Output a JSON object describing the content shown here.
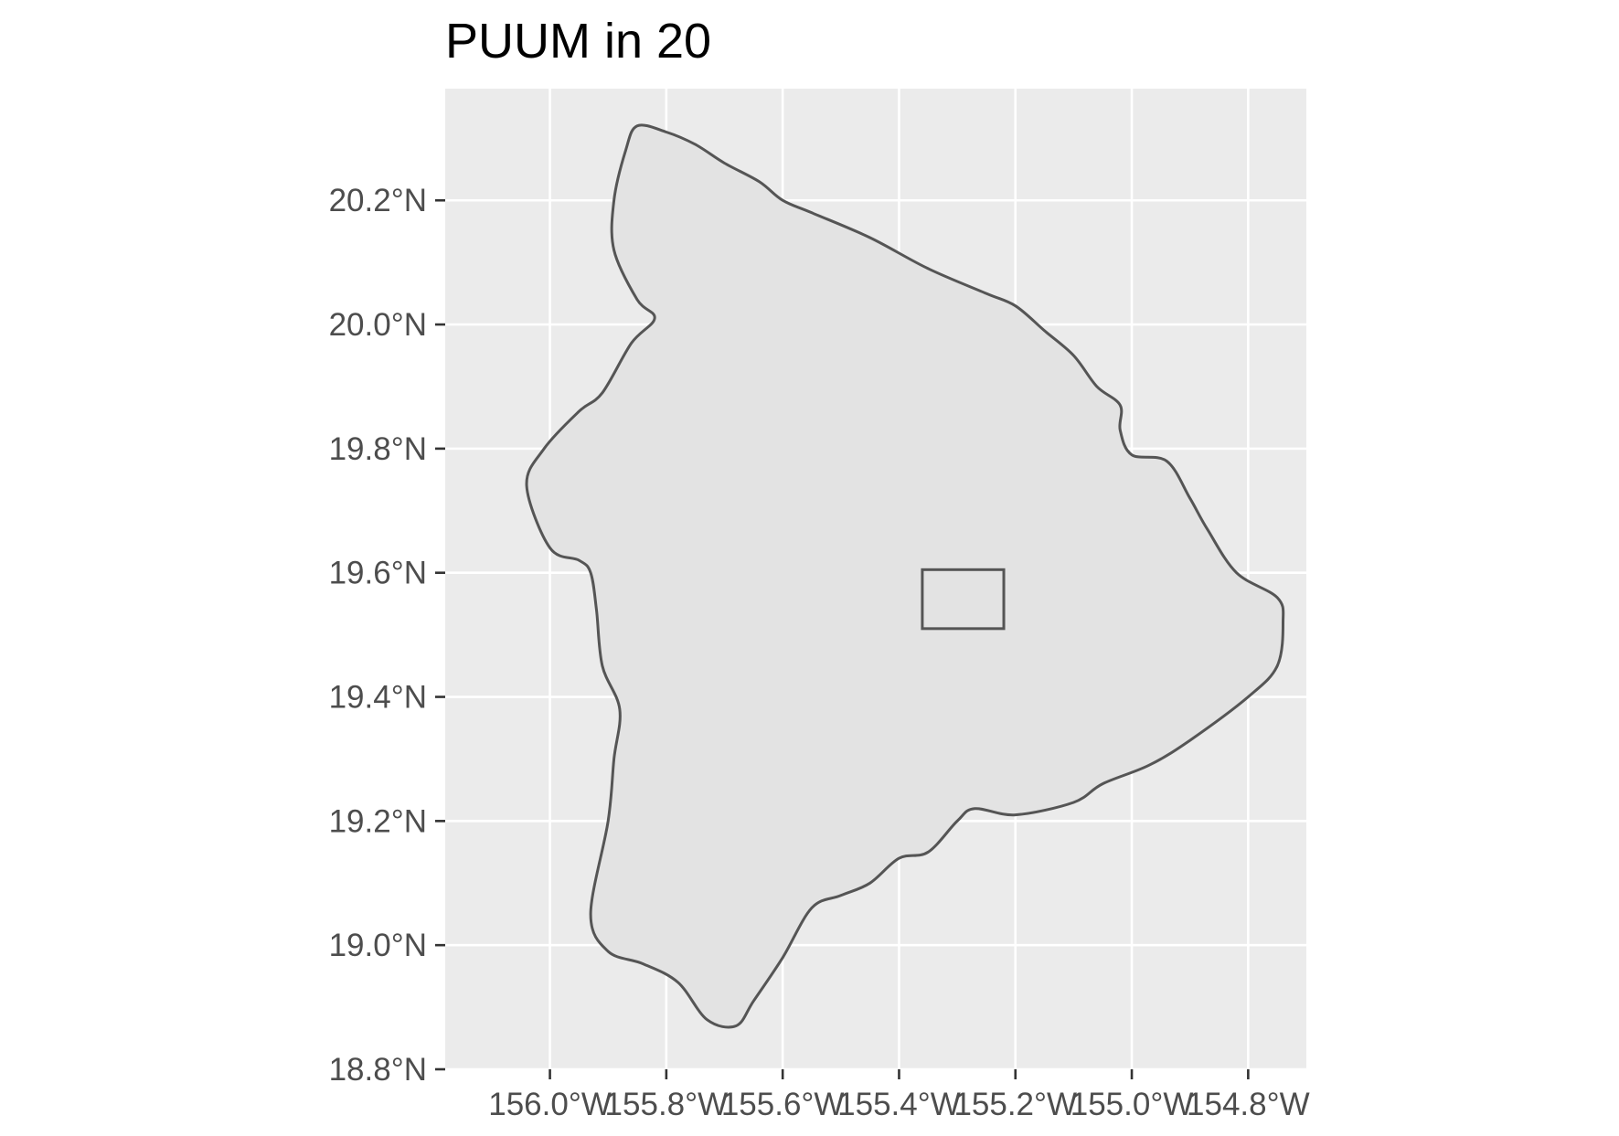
{
  "title": "PUUM in 20",
  "map": {
    "projection": "equirectangular",
    "panel_background": "#ebebeb",
    "grid_color": "#ffffff",
    "land_fill": "#e3e3e3",
    "outline_color": "#555555",
    "tick_color": "#333333",
    "lon_range": [
      -156.18,
      -154.7
    ],
    "lat_range": [
      18.8,
      20.38
    ],
    "lon_ticks": [
      {
        "value": -156.0,
        "label": "156.0°W"
      },
      {
        "value": -155.8,
        "label": "155.8°W"
      },
      {
        "value": -155.6,
        "label": "155.6°W"
      },
      {
        "value": -155.4,
        "label": "155.4°W"
      },
      {
        "value": -155.2,
        "label": "155.2°W"
      },
      {
        "value": -155.0,
        "label": "155.0°W"
      },
      {
        "value": -154.8,
        "label": "154.8°W"
      }
    ],
    "lat_ticks": [
      {
        "value": 18.8,
        "label": "18.8°N"
      },
      {
        "value": 19.0,
        "label": "19.0°N"
      },
      {
        "value": 19.2,
        "label": "19.2°N"
      },
      {
        "value": 19.4,
        "label": "19.4°N"
      },
      {
        "value": 19.6,
        "label": "19.6°N"
      },
      {
        "value": 19.8,
        "label": "19.8°N"
      },
      {
        "value": 20.0,
        "label": "20.0°N"
      },
      {
        "value": 20.2,
        "label": "20.2°N"
      }
    ],
    "island_outline": [
      [
        -155.85,
        20.32
      ],
      [
        -155.8,
        20.31
      ],
      [
        -155.75,
        20.29
      ],
      [
        -155.7,
        20.26
      ],
      [
        -155.64,
        20.23
      ],
      [
        -155.6,
        20.2
      ],
      [
        -155.55,
        20.18
      ],
      [
        -155.45,
        20.14
      ],
      [
        -155.35,
        20.09
      ],
      [
        -155.25,
        20.05
      ],
      [
        -155.2,
        20.03
      ],
      [
        -155.15,
        19.99
      ],
      [
        -155.1,
        19.95
      ],
      [
        -155.06,
        19.9
      ],
      [
        -155.02,
        19.87
      ],
      [
        -155.02,
        19.83
      ],
      [
        -155.0,
        19.79
      ],
      [
        -154.94,
        19.78
      ],
      [
        -154.9,
        19.72
      ],
      [
        -154.87,
        19.67
      ],
      [
        -154.82,
        19.6
      ],
      [
        -154.75,
        19.56
      ],
      [
        -154.74,
        19.52
      ],
      [
        -154.75,
        19.45
      ],
      [
        -154.8,
        19.4
      ],
      [
        -154.9,
        19.33
      ],
      [
        -154.97,
        19.29
      ],
      [
        -155.05,
        19.26
      ],
      [
        -155.1,
        19.23
      ],
      [
        -155.2,
        19.21
      ],
      [
        -155.27,
        19.22
      ],
      [
        -155.3,
        19.2
      ],
      [
        -155.35,
        19.15
      ],
      [
        -155.4,
        19.14
      ],
      [
        -155.45,
        19.1
      ],
      [
        -155.5,
        19.08
      ],
      [
        -155.55,
        19.06
      ],
      [
        -155.6,
        18.98
      ],
      [
        -155.65,
        18.91
      ],
      [
        -155.68,
        18.87
      ],
      [
        -155.73,
        18.88
      ],
      [
        -155.78,
        18.94
      ],
      [
        -155.84,
        18.97
      ],
      [
        -155.9,
        18.99
      ],
      [
        -155.93,
        19.05
      ],
      [
        -155.9,
        19.2
      ],
      [
        -155.89,
        19.3
      ],
      [
        -155.88,
        19.38
      ],
      [
        -155.91,
        19.45
      ],
      [
        -155.92,
        19.54
      ],
      [
        -155.93,
        19.6
      ],
      [
        -155.95,
        19.62
      ],
      [
        -156.0,
        19.64
      ],
      [
        -156.04,
        19.74
      ],
      [
        -156.01,
        19.8
      ],
      [
        -155.95,
        19.86
      ],
      [
        -155.91,
        19.89
      ],
      [
        -155.86,
        19.97
      ],
      [
        -155.82,
        20.01
      ],
      [
        -155.85,
        20.04
      ],
      [
        -155.89,
        20.12
      ],
      [
        -155.89,
        20.2
      ],
      [
        -155.87,
        20.28
      ]
    ],
    "site_box": {
      "lon": [
        -155.36,
        -155.22
      ],
      "lat": [
        19.51,
        19.605
      ]
    }
  }
}
